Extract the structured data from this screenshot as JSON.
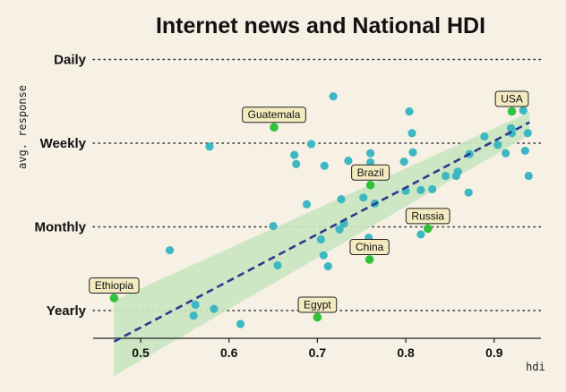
{
  "chart_data": {
    "type": "scatter",
    "title": "Internet news and National HDI",
    "xlabel": "hdi",
    "ylabel": "avg. response",
    "xlim": [
      0.45,
      0.955
    ],
    "ylim": [
      0.7,
      3.97
    ],
    "xticks": [
      {
        "value": 0.5,
        "label": "0.5"
      },
      {
        "value": 0.6,
        "label": "0.6"
      },
      {
        "value": 0.7,
        "label": "0.7"
      },
      {
        "value": 0.8,
        "label": "0.8"
      },
      {
        "value": 0.9,
        "label": "0.9"
      }
    ],
    "yticks": [
      {
        "value": 1,
        "label": "Yearly"
      },
      {
        "value": 2,
        "label": "Monthly"
      },
      {
        "value": 3,
        "label": "Weekly"
      },
      {
        "value": 4,
        "label": "Daily"
      }
    ],
    "grid": "horizontal dotted",
    "colors": {
      "points": "#3db8c2",
      "highlight": "#2fc23a",
      "trend": "#2a3a8c",
      "band": "#c9e5c0",
      "annotation_fill": "#f4eac0"
    },
    "trend": {
      "x0": 0.47,
      "y0": 0.63,
      "x1": 0.94,
      "y1": 3.25,
      "band_left": [
        0.22,
        1.12
      ],
      "band_right": [
        3.1,
        3.37
      ]
    },
    "points": [
      [
        0.533,
        1.72
      ],
      [
        0.562,
        1.07
      ],
      [
        0.56,
        0.94
      ],
      [
        0.583,
        1.02
      ],
      [
        0.613,
        0.84
      ],
      [
        0.578,
        2.96
      ],
      [
        0.655,
        1.54
      ],
      [
        0.65,
        2.01
      ],
      [
        0.674,
        2.86
      ],
      [
        0.676,
        2.75
      ],
      [
        0.693,
        2.99
      ],
      [
        0.688,
        2.27
      ],
      [
        0.704,
        1.85
      ],
      [
        0.707,
        1.66
      ],
      [
        0.712,
        1.53
      ],
      [
        0.708,
        2.73
      ],
      [
        0.718,
        3.56
      ],
      [
        0.725,
        1.97
      ],
      [
        0.727,
        2.33
      ],
      [
        0.73,
        2.04
      ],
      [
        0.735,
        2.79
      ],
      [
        0.752,
        2.35
      ],
      [
        0.758,
        1.87
      ],
      [
        0.76,
        2.77
      ],
      [
        0.76,
        2.88
      ],
      [
        0.762,
        2.66
      ],
      [
        0.765,
        2.28
      ],
      [
        0.798,
        2.78
      ],
      [
        0.8,
        2.43
      ],
      [
        0.804,
        3.38
      ],
      [
        0.807,
        3.12
      ],
      [
        0.808,
        2.89
      ],
      [
        0.817,
        2.44
      ],
      [
        0.817,
        1.91
      ],
      [
        0.83,
        2.45
      ],
      [
        0.845,
        2.61
      ],
      [
        0.857,
        2.61
      ],
      [
        0.859,
        2.66
      ],
      [
        0.871,
        2.41
      ],
      [
        0.872,
        2.87
      ],
      [
        0.889,
        3.08
      ],
      [
        0.904,
        2.98
      ],
      [
        0.913,
        2.88
      ],
      [
        0.919,
        3.18
      ],
      [
        0.92,
        3.12
      ],
      [
        0.933,
        3.39
      ],
      [
        0.935,
        2.91
      ],
      [
        0.938,
        3.12
      ],
      [
        0.939,
        2.61
      ]
    ],
    "labeled_points": [
      {
        "label": "USA",
        "x": 0.92,
        "y": 3.38
      },
      {
        "label": "Guatemala",
        "x": 0.651,
        "y": 3.19
      },
      {
        "label": "Brazil",
        "x": 0.76,
        "y": 2.5
      },
      {
        "label": "Russia",
        "x": 0.825,
        "y": 1.98
      },
      {
        "label": "China",
        "x": 0.759,
        "y": 1.61
      },
      {
        "label": "Ethiopia",
        "x": 0.47,
        "y": 1.15
      },
      {
        "label": "Egypt",
        "x": 0.7,
        "y": 0.92
      }
    ]
  }
}
